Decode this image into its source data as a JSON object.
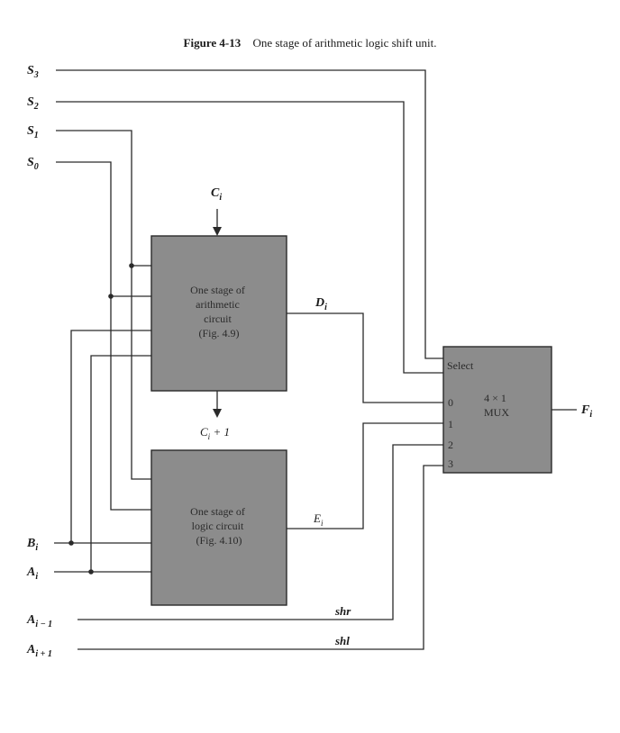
{
  "caption": {
    "number": "Figure 4-13",
    "text": "One stage of arithmetic logic shift unit."
  },
  "inputs": {
    "s3": [
      "S",
      "3"
    ],
    "s2": [
      "S",
      "2"
    ],
    "s1": [
      "S",
      "1"
    ],
    "s0": [
      "S",
      "0"
    ],
    "ci": [
      "C",
      "i"
    ],
    "bi": [
      "B",
      "i"
    ],
    "ai": [
      "A",
      "i"
    ],
    "a_im1": [
      "A",
      "i − 1"
    ],
    "a_ip1": [
      "A",
      "i + 1"
    ]
  },
  "arith_block": {
    "lines": [
      "One stage of",
      "arithmetic",
      "circuit",
      "(Fig. 4.9)"
    ]
  },
  "logic_block": {
    "lines": [
      "One stage of",
      "logic circuit",
      "(Fig. 4.10)"
    ]
  },
  "mux_block": {
    "select_label": "Select",
    "name_lines": [
      "4 × 1",
      "MUX"
    ],
    "input_numbers": [
      "0",
      "1",
      "2",
      "3"
    ]
  },
  "signals": {
    "di": [
      "D",
      "i"
    ],
    "ei": [
      "E",
      "i"
    ],
    "carry_out": [
      "C",
      "i",
      " + 1"
    ],
    "fi": [
      "F",
      "i"
    ],
    "shr": "shr",
    "shl": "shl"
  }
}
